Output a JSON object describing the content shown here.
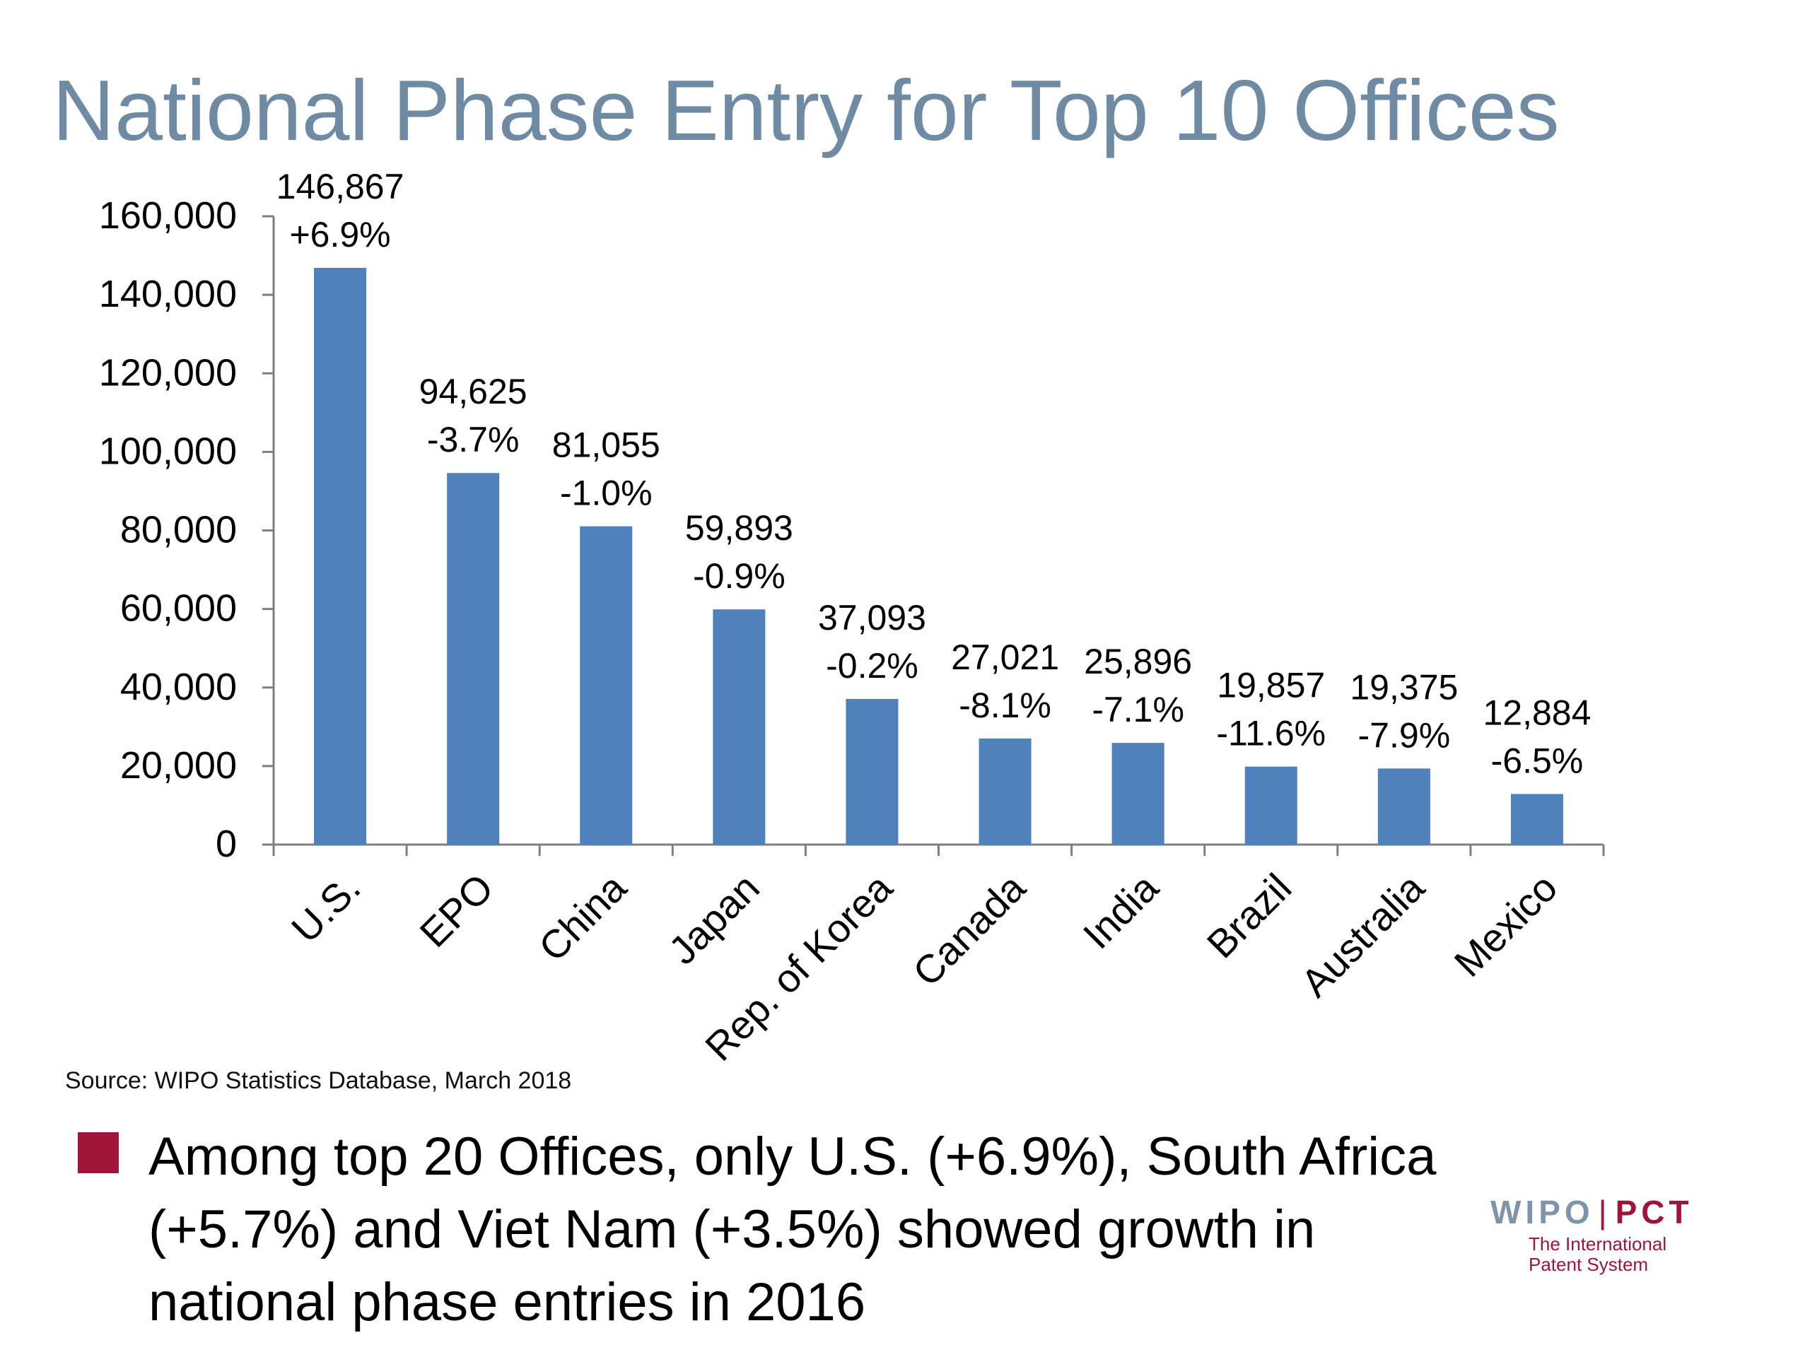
{
  "title": "National Phase Entry for Top 10 Offices",
  "source": "Source:  WIPO Statistics Database, March 2018",
  "bullet": {
    "lines": [
      "Among top 20 Offices, only U.S. (+6.9%), South Africa",
      "(+5.7%) and Viet Nam (+3.5%) showed growth in",
      "national phase entries in 2016"
    ],
    "marker_color": "#a0143a"
  },
  "logo": {
    "wipo": "WIPO",
    "separator": "|",
    "pct": "PCT",
    "subtitle_lines": [
      "The International",
      "Patent System"
    ]
  },
  "chart_data": {
    "type": "bar",
    "categories": [
      "U.S.",
      "EPO",
      "China",
      "Japan",
      "Rep. of Korea",
      "Canada",
      "India",
      "Brazil",
      "Australia",
      "Mexico"
    ],
    "values": [
      146867,
      94625,
      81055,
      59893,
      37093,
      27021,
      25896,
      19857,
      19375,
      12884
    ],
    "value_labels": [
      "146,867",
      "94,625",
      "81,055",
      "59,893",
      "37,093",
      "27,021",
      "25,896",
      "19,857",
      "19,375",
      "12,884"
    ],
    "growth_labels": [
      "+6.9%",
      "-3.7%",
      "-1.0%",
      "-0.9%",
      "-0.2%",
      "-8.1%",
      "-7.1%",
      "-11.6%",
      "-7.9%",
      "-6.5%"
    ],
    "yticks": [
      0,
      20000,
      40000,
      60000,
      80000,
      100000,
      120000,
      140000,
      160000
    ],
    "ytick_labels": [
      "0",
      "20,000",
      "40,000",
      "60,000",
      "80,000",
      "100,000",
      "120,000",
      "140,000",
      "160,000"
    ],
    "ylim": [
      0,
      160000
    ],
    "bar_color": "#4f81bd",
    "grid": false,
    "legend": "none",
    "title": "",
    "xlabel": "",
    "ylabel": ""
  }
}
